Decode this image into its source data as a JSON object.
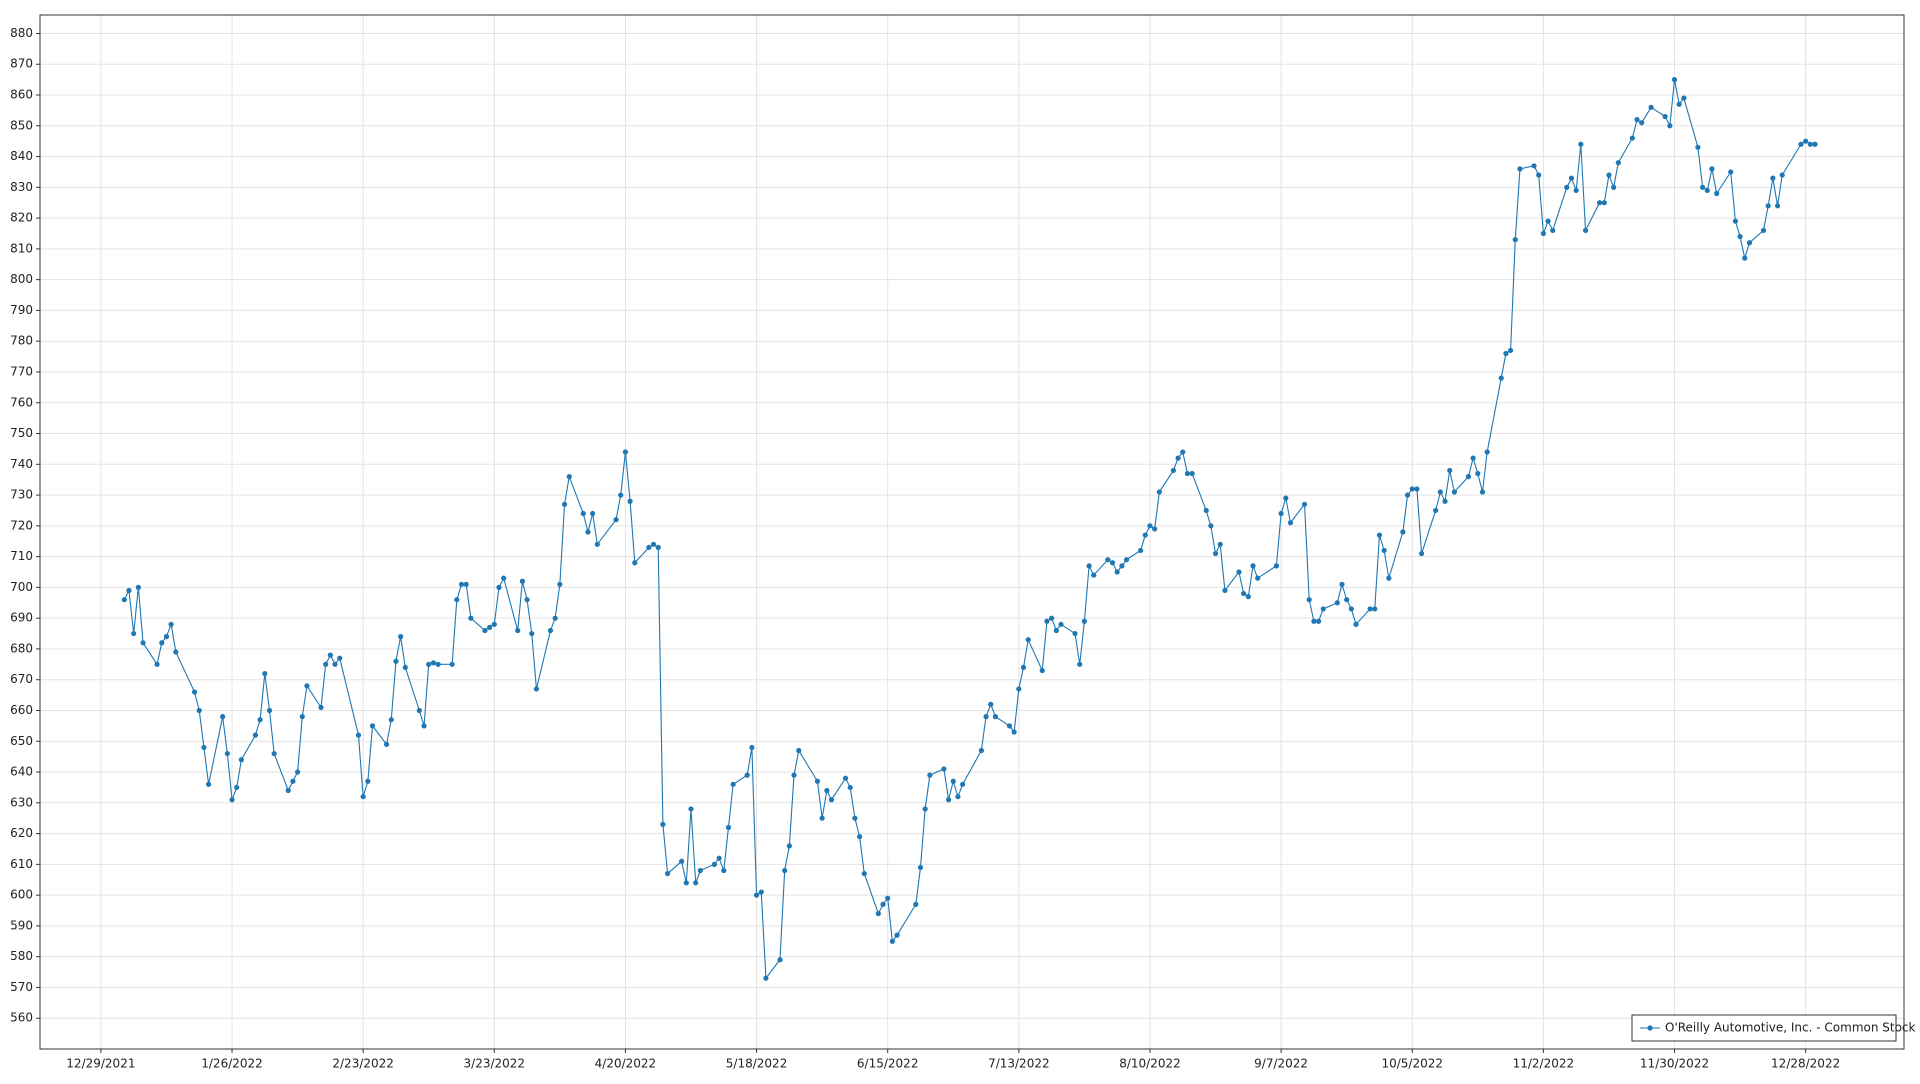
{
  "chart_data": {
    "type": "line",
    "xlim": [
      "12/16/2021",
      "1/18/2023"
    ],
    "xticks": [
      "12/29/2021",
      "1/26/2022",
      "2/23/2022",
      "3/23/2022",
      "4/20/2022",
      "5/18/2022",
      "6/15/2022",
      "7/13/2022",
      "8/10/2022",
      "9/7/2022",
      "10/5/2022",
      "11/2/2022",
      "11/30/2022",
      "12/28/2022"
    ],
    "ylim": [
      550,
      886
    ],
    "yticks": [
      560,
      570,
      580,
      590,
      600,
      610,
      620,
      630,
      640,
      650,
      660,
      670,
      680,
      690,
      700,
      710,
      720,
      730,
      740,
      750,
      760,
      770,
      780,
      790,
      800,
      810,
      820,
      830,
      840,
      850,
      860,
      870,
      880
    ],
    "grid": true,
    "legend": "lower right",
    "x": [
      "1/3/2022",
      "1/4/2022",
      "1/5/2022",
      "1/6/2022",
      "1/7/2022",
      "1/10/2022",
      "1/11/2022",
      "1/12/2022",
      "1/13/2022",
      "1/14/2022",
      "1/18/2022",
      "1/19/2022",
      "1/20/2022",
      "1/21/2022",
      "1/24/2022",
      "1/25/2022",
      "1/26/2022",
      "1/27/2022",
      "1/28/2022",
      "1/31/2022",
      "2/1/2022",
      "2/2/2022",
      "2/3/2022",
      "2/4/2022",
      "2/7/2022",
      "2/8/2022",
      "2/9/2022",
      "2/10/2022",
      "2/11/2022",
      "2/14/2022",
      "2/15/2022",
      "2/16/2022",
      "2/17/2022",
      "2/18/2022",
      "2/22/2022",
      "2/23/2022",
      "2/24/2022",
      "2/25/2022",
      "2/28/2022",
      "3/1/2022",
      "3/2/2022",
      "3/3/2022",
      "3/4/2022",
      "3/7/2022",
      "3/8/2022",
      "3/9/2022",
      "3/10/2022",
      "3/11/2022",
      "3/14/2022",
      "3/15/2022",
      "3/16/2022",
      "3/17/2022",
      "3/18/2022",
      "3/21/2022",
      "3/22/2022",
      "3/23/2022",
      "3/24/2022",
      "3/25/2022",
      "3/28/2022",
      "3/29/2022",
      "3/30/2022",
      "3/31/2022",
      "4/1/2022",
      "4/4/2022",
      "4/5/2022",
      "4/6/2022",
      "4/7/2022",
      "4/8/2022",
      "4/11/2022",
      "4/12/2022",
      "4/13/2022",
      "4/14/2022",
      "4/18/2022",
      "4/19/2022",
      "4/20/2022",
      "4/21/2022",
      "4/22/2022",
      "4/25/2022",
      "4/26/2022",
      "4/27/2022",
      "4/28/2022",
      "4/29/2022",
      "5/2/2022",
      "5/3/2022",
      "5/4/2022",
      "5/5/2022",
      "5/6/2022",
      "5/9/2022",
      "5/10/2022",
      "5/11/2022",
      "5/12/2022",
      "5/13/2022",
      "5/16/2022",
      "5/17/2022",
      "5/18/2022",
      "5/19/2022",
      "5/20/2022",
      "5/23/2022",
      "5/24/2022",
      "5/25/2022",
      "5/26/2022",
      "5/27/2022",
      "5/31/2022",
      "6/1/2022",
      "6/2/2022",
      "6/3/2022",
      "6/6/2022",
      "6/7/2022",
      "6/8/2022",
      "6/9/2022",
      "6/10/2022",
      "6/13/2022",
      "6/14/2022",
      "6/15/2022",
      "6/16/2022",
      "6/17/2022",
      "6/21/2022",
      "6/22/2022",
      "6/23/2022",
      "6/24/2022",
      "6/27/2022",
      "6/28/2022",
      "6/29/2022",
      "6/30/2022",
      "7/1/2022",
      "7/5/2022",
      "7/6/2022",
      "7/7/2022",
      "7/8/2022",
      "7/11/2022",
      "7/12/2022",
      "7/13/2022",
      "7/14/2022",
      "7/15/2022",
      "7/18/2022",
      "7/19/2022",
      "7/20/2022",
      "7/21/2022",
      "7/22/2022",
      "7/25/2022",
      "7/26/2022",
      "7/27/2022",
      "7/28/2022",
      "7/29/2022",
      "8/1/2022",
      "8/2/2022",
      "8/3/2022",
      "8/4/2022",
      "8/5/2022",
      "8/8/2022",
      "8/9/2022",
      "8/10/2022",
      "8/11/2022",
      "8/12/2022",
      "8/15/2022",
      "8/16/2022",
      "8/17/2022",
      "8/18/2022",
      "8/19/2022",
      "8/22/2022",
      "8/23/2022",
      "8/24/2022",
      "8/25/2022",
      "8/26/2022",
      "8/29/2022",
      "8/30/2022",
      "8/31/2022",
      "9/1/2022",
      "9/2/2022",
      "9/6/2022",
      "9/7/2022",
      "9/8/2022",
      "9/9/2022",
      "9/12/2022",
      "9/13/2022",
      "9/14/2022",
      "9/15/2022",
      "9/16/2022",
      "9/19/2022",
      "9/20/2022",
      "9/21/2022",
      "9/22/2022",
      "9/23/2022",
      "9/26/2022",
      "9/27/2022",
      "9/28/2022",
      "9/29/2022",
      "9/30/2022",
      "10/3/2022",
      "10/4/2022",
      "10/5/2022",
      "10/6/2022",
      "10/7/2022",
      "10/10/2022",
      "10/11/2022",
      "10/12/2022",
      "10/13/2022",
      "10/14/2022",
      "10/17/2022",
      "10/18/2022",
      "10/19/2022",
      "10/20/2022",
      "10/21/2022",
      "10/24/2022",
      "10/25/2022",
      "10/26/2022",
      "10/27/2022",
      "10/28/2022",
      "10/31/2022",
      "11/1/2022",
      "11/2/2022",
      "11/3/2022",
      "11/4/2022",
      "11/7/2022",
      "11/8/2022",
      "11/9/2022",
      "11/10/2022",
      "11/11/2022",
      "11/14/2022",
      "11/15/2022",
      "11/16/2022",
      "11/17/2022",
      "11/18/2022",
      "11/21/2022",
      "11/22/2022",
      "11/23/2022",
      "11/25/2022",
      "11/28/2022",
      "11/29/2022",
      "11/30/2022",
      "12/1/2022",
      "12/2/2022",
      "12/5/2022",
      "12/6/2022",
      "12/7/2022",
      "12/8/2022",
      "12/9/2022",
      "12/12/2022",
      "12/13/2022",
      "12/14/2022",
      "12/15/2022",
      "12/16/2022",
      "12/19/2022",
      "12/20/2022",
      "12/21/2022",
      "12/22/2022",
      "12/23/2022",
      "12/27/2022",
      "12/28/2022",
      "12/29/2022",
      "12/30/2022"
    ],
    "series": [
      {
        "name": "O'Reilly Automotive, Inc. - Common Stock",
        "color": "#1f77b4",
        "values": [
          696,
          699,
          685,
          700,
          682,
          675,
          682,
          684,
          688,
          679,
          666,
          660,
          648,
          636,
          658,
          646,
          631,
          635,
          644,
          652,
          657,
          672,
          660,
          646,
          634,
          637,
          640,
          658,
          668,
          661,
          675,
          678,
          675,
          677,
          652,
          632,
          637,
          655,
          649,
          657,
          676,
          684,
          674,
          660,
          655,
          675,
          675.5,
          675,
          675,
          696,
          701,
          701,
          690,
          686,
          687,
          688,
          700,
          703,
          686,
          702,
          696,
          685,
          667,
          686,
          690,
          701,
          727,
          736,
          724,
          718,
          724,
          714,
          722,
          730,
          744,
          728,
          708,
          713,
          714,
          713,
          623,
          607,
          611,
          604,
          628,
          604,
          608,
          610,
          612,
          608,
          622,
          636,
          639,
          648,
          600,
          601,
          573,
          579,
          608,
          616,
          639,
          647,
          637,
          625,
          634,
          631,
          638,
          635,
          625,
          619,
          607,
          594,
          597,
          599,
          585,
          587,
          597,
          609,
          628,
          639,
          641,
          631,
          637,
          632,
          636,
          647,
          658,
          662,
          658,
          655,
          653,
          667,
          674,
          683,
          673,
          689,
          690,
          686,
          688,
          685,
          675,
          689,
          707,
          704,
          709,
          708,
          705,
          707,
          709,
          712,
          717,
          720,
          719,
          731,
          738,
          742,
          744,
          737,
          737,
          725,
          720,
          711,
          714,
          699,
          705,
          698,
          697,
          707,
          703,
          707,
          724,
          729,
          721,
          727,
          696,
          689,
          689,
          693,
          695,
          701,
          696,
          693,
          688,
          693,
          693,
          717,
          712,
          703,
          718,
          730,
          732,
          732,
          711,
          725,
          731,
          728,
          738,
          731,
          736,
          742,
          737,
          731,
          744,
          768,
          776,
          777,
          813,
          836,
          837,
          834,
          815,
          819,
          816,
          830,
          833,
          829,
          844,
          816,
          825,
          825,
          834,
          830,
          838,
          846,
          852,
          851,
          856,
          853,
          850,
          865,
          857,
          859,
          843,
          830,
          829,
          836,
          828,
          835,
          819,
          814,
          807,
          812,
          816,
          824,
          833,
          824,
          834,
          844,
          845,
          844,
          844
        ]
      }
    ]
  }
}
